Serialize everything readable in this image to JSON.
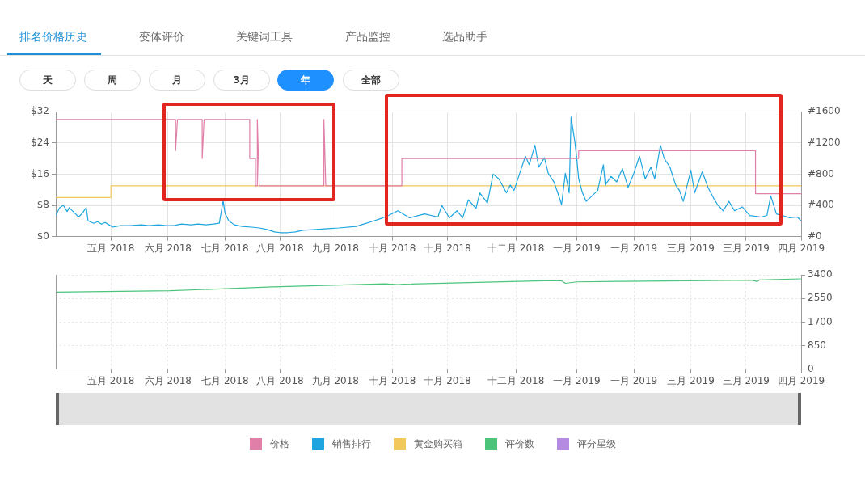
{
  "chart_data": [
    {
      "type": "line",
      "annotations": [
        "排名价格历史",
        "变体评价",
        "关键词工具",
        "产品监控",
        "选品助手",
        "天",
        "周",
        "月",
        "3月",
        "年",
        "全部"
      ],
      "xlim": [
        "2018-04-02",
        "2019-04-29"
      ],
      "xticks": [
        {
          "value": "2018-05-01",
          "label": "五月 2018"
        },
        {
          "value": "2018-05-31",
          "label": "六月 2018"
        },
        {
          "value": "2018-06-30",
          "label": "七月 2018"
        },
        {
          "value": "2018-07-29",
          "label": "八月 2018"
        },
        {
          "value": "2018-08-27",
          "label": "九月 2018"
        },
        {
          "value": "2018-09-26",
          "label": "十月 2018"
        },
        {
          "value": "2018-10-25",
          "label": "十月 2018"
        },
        {
          "value": "2018-11-30",
          "label": "十二月 2018"
        },
        {
          "value": "2019-01-01",
          "label": "一月 2019"
        },
        {
          "value": "2019-01-31",
          "label": "一月 2019"
        },
        {
          "value": "2019-03-02",
          "label": "三月 2019"
        },
        {
          "value": "2019-03-31",
          "label": "三月 2019"
        },
        {
          "value": "2019-04-29",
          "label": "四月 2019"
        }
      ],
      "ylim": [
        0,
        32
      ],
      "yticks": [
        {
          "value": 0,
          "label": "$0"
        },
        {
          "value": 8,
          "label": "$8"
        },
        {
          "value": 16,
          "label": "$16"
        },
        {
          "value": 24,
          "label": "$24"
        },
        {
          "value": 32,
          "label": "$32"
        }
      ],
      "y2lim": [
        0,
        1600
      ],
      "y2ticks": [
        {
          "value": 0,
          "label": "#0"
        },
        {
          "value": 400,
          "label": "#400"
        },
        {
          "value": 800,
          "label": "#800"
        },
        {
          "value": 1200,
          "label": "#1200"
        },
        {
          "value": 1600,
          "label": "#1600"
        }
      ],
      "grid": true,
      "legend": "bottom",
      "marker": "none",
      "series": [
        {
          "name": "价格",
          "color": "#e07fa8",
          "x": [
            "2018-04-02",
            "2018-06-04",
            "2018-06-04",
            "2018-06-05",
            "2018-06-18",
            "2018-06-18",
            "2018-06-19",
            "2018-07-13",
            "2018-07-13",
            "2018-07-16",
            "2018-07-16",
            "2018-07-17",
            "2018-07-17",
            "2018-07-18",
            "2018-08-21",
            "2018-08-21",
            "2018-08-22",
            "2018-10-01",
            "2018-10-01",
            "2019-01-02",
            "2019-01-02",
            "2019-04-05",
            "2019-04-05",
            "2019-04-29"
          ],
          "values": [
            30,
            30,
            22,
            30,
            30,
            20,
            30,
            30,
            20,
            20,
            13,
            13,
            30,
            13,
            13,
            30,
            13,
            13,
            20,
            20,
            22,
            22,
            11,
            11
          ]
        },
        {
          "name": "销售排行",
          "color": "#1ea5df",
          "axis": "y2",
          "x": [
            "2018-04-02",
            "2018-04-04",
            "2018-04-06",
            "2018-04-08",
            "2018-04-09",
            "2018-04-12",
            "2018-04-14",
            "2018-04-16",
            "2018-04-18",
            "2018-04-19",
            "2018-04-22",
            "2018-04-24",
            "2018-04-26",
            "2018-04-28",
            "2018-04-30",
            "2018-05-02",
            "2018-05-06",
            "2018-05-11",
            "2018-05-17",
            "2018-05-21",
            "2018-05-26",
            "2018-05-30",
            "2018-06-03",
            "2018-06-07",
            "2018-06-12",
            "2018-06-16",
            "2018-06-20",
            "2018-06-24",
            "2018-06-27",
            "2018-06-29",
            "2018-06-30",
            "2018-07-02",
            "2018-07-05",
            "2018-07-09",
            "2018-07-14",
            "2018-07-18",
            "2018-07-22",
            "2018-07-26",
            "2018-07-29",
            "2018-08-02",
            "2018-08-06",
            "2018-08-10",
            "2018-08-17",
            "2018-08-23",
            "2018-08-29",
            "2018-09-07",
            "2018-09-11",
            "2018-09-15",
            "2018-09-20",
            "2018-09-24",
            "2018-09-29",
            "2018-10-05",
            "2018-10-13",
            "2018-10-20",
            "2018-10-22",
            "2018-10-26",
            "2018-10-30",
            "2018-11-02",
            "2018-11-05",
            "2018-11-09",
            "2018-11-11",
            "2018-11-15",
            "2018-11-18",
            "2018-11-21",
            "2018-11-25",
            "2018-11-27",
            "2018-11-29",
            "2018-12-02",
            "2018-12-05",
            "2018-12-07",
            "2018-12-10",
            "2018-12-12",
            "2018-12-15",
            "2018-12-17",
            "2018-12-20",
            "2018-12-22",
            "2018-12-24",
            "2018-12-26",
            "2018-12-28",
            "2018-12-29",
            "2018-12-31",
            "2019-01-01",
            "2019-01-02",
            "2019-01-04",
            "2019-01-06",
            "2019-01-09",
            "2019-01-12",
            "2019-01-15",
            "2019-01-16",
            "2019-01-19",
            "2019-01-22",
            "2019-01-25",
            "2019-01-28",
            "2019-01-31",
            "2019-02-03",
            "2019-02-06",
            "2019-02-09",
            "2019-02-11",
            "2019-02-14",
            "2019-02-16",
            "2019-02-19",
            "2019-02-22",
            "2019-02-24",
            "2019-02-26",
            "2019-03-02",
            "2019-03-04",
            "2019-03-08",
            "2019-03-11",
            "2019-03-14",
            "2019-03-16",
            "2019-03-19",
            "2019-03-22",
            "2019-03-25",
            "2019-03-29",
            "2019-04-02",
            "2019-04-08",
            "2019-04-11",
            "2019-04-13",
            "2019-04-16",
            "2019-04-19",
            "2019-04-23",
            "2019-04-27",
            "2019-04-29"
          ],
          "values": [
            270,
            370,
            400,
            320,
            370,
            300,
            250,
            300,
            370,
            200,
            170,
            190,
            160,
            180,
            150,
            120,
            140,
            140,
            150,
            140,
            150,
            140,
            140,
            160,
            150,
            160,
            150,
            160,
            170,
            460,
            300,
            200,
            150,
            130,
            120,
            110,
            90,
            60,
            50,
            50,
            60,
            80,
            90,
            100,
            110,
            130,
            160,
            190,
            230,
            270,
            330,
            240,
            290,
            250,
            400,
            240,
            330,
            240,
            470,
            360,
            560,
            430,
            800,
            740,
            560,
            660,
            590,
            810,
            1030,
            920,
            1170,
            890,
            1010,
            810,
            700,
            560,
            410,
            810,
            560,
            1530,
            1210,
            1000,
            740,
            560,
            450,
            520,
            590,
            920,
            660,
            770,
            700,
            870,
            630,
            810,
            1030,
            740,
            890,
            740,
            1170,
            1000,
            890,
            660,
            590,
            450,
            850,
            560,
            830,
            630,
            490,
            410,
            330,
            450,
            330,
            380,
            270,
            250,
            270,
            520,
            290,
            270,
            240,
            250,
            200
          ]
        },
        {
          "name": "黄金购买箱",
          "color": "#f2c75c",
          "x": [
            "2018-04-02",
            "2018-05-01",
            "2018-05-01",
            "2019-04-29"
          ],
          "values": [
            10,
            10,
            13,
            13
          ]
        }
      ]
    },
    {
      "type": "line",
      "xlim": [
        "2018-04-02",
        "2019-04-29"
      ],
      "xticks": [
        {
          "value": "2018-05-01",
          "label": "五月 2018"
        },
        {
          "value": "2018-05-31",
          "label": "六月 2018"
        },
        {
          "value": "2018-06-30",
          "label": "七月 2018"
        },
        {
          "value": "2018-07-29",
          "label": "八月 2018"
        },
        {
          "value": "2018-08-27",
          "label": "九月 2018"
        },
        {
          "value": "2018-09-26",
          "label": "十月 2018"
        },
        {
          "value": "2018-10-25",
          "label": "十月 2018"
        },
        {
          "value": "2018-11-30",
          "label": "十二月 2018"
        },
        {
          "value": "2019-01-01",
          "label": "一月 2019"
        },
        {
          "value": "2019-01-31",
          "label": "一月 2019"
        },
        {
          "value": "2019-03-02",
          "label": "三月 2019"
        },
        {
          "value": "2019-03-31",
          "label": "三月 2019"
        },
        {
          "value": "2019-04-29",
          "label": "四月 2019"
        }
      ],
      "ylim": [
        0,
        3400
      ],
      "yticks": [
        0,
        850,
        1700,
        2550,
        3400
      ],
      "grid": true,
      "legend": "bottom",
      "marker": "none",
      "series": [
        {
          "name": "评价数",
          "color": "#4cc47a",
          "x": [
            "2018-04-02",
            "2018-06-01",
            "2018-07-25",
            "2018-09-22",
            "2018-09-29",
            "2018-10-02",
            "2018-12-19",
            "2018-12-24",
            "2018-12-26",
            "2019-01-01",
            "2019-01-25",
            "2019-04-03",
            "2019-04-06",
            "2019-04-07",
            "2019-04-29"
          ],
          "values": [
            2780,
            2830,
            2970,
            3080,
            3050,
            3070,
            3200,
            3190,
            3100,
            3150,
            3170,
            3210,
            3160,
            3220,
            3260
          ]
        },
        {
          "name": "评分星级",
          "color": "#b48be0"
        }
      ]
    }
  ]
}
